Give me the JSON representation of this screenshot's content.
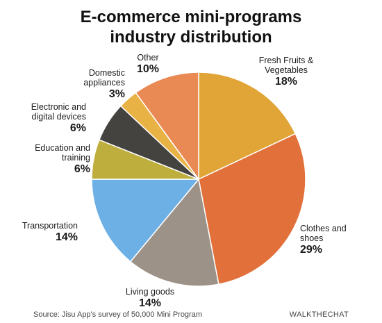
{
  "title_lines": [
    "E-commerce mini-programs",
    "industry distribution"
  ],
  "source": "Source: Jisu App's survey of 50,000 Mini Program",
  "brand": "WALKTHECHAT",
  "chart_data": {
    "type": "pie",
    "title": "E-commerce mini-programs industry distribution",
    "slices": [
      {
        "label_lines": [
          "Fresh Fruits &",
          "Vegetables"
        ],
        "label": "Fresh Fruits & Vegetables",
        "value": 18,
        "pct_text": "18%",
        "color": "#E0A437"
      },
      {
        "label_lines": [
          "Clothes and",
          "shoes"
        ],
        "label": "Clothes and shoes",
        "value": 29,
        "pct_text": "29%",
        "color": "#E2703A"
      },
      {
        "label_lines": [
          "Living goods"
        ],
        "label": "Living goods",
        "value": 14,
        "pct_text": "14%",
        "color": "#9D9287"
      },
      {
        "label_lines": [
          "Transportation"
        ],
        "label": "Transportation",
        "value": 14,
        "pct_text": "14%",
        "color": "#6DB0E6"
      },
      {
        "label_lines": [
          "Education and",
          "training"
        ],
        "label": "Education and training",
        "value": 6,
        "pct_text": "6%",
        "color": "#BDAE3E"
      },
      {
        "label_lines": [
          "Electronic and",
          "digital devices"
        ],
        "label": "Electronic and digital devices",
        "value": 6,
        "pct_text": "6%",
        "color": "#444340"
      },
      {
        "label_lines": [
          "Domestic",
          "appliances"
        ],
        "label": "Domestic appliances",
        "value": 3,
        "pct_text": "3%",
        "color": "#E8B245"
      },
      {
        "label_lines": [
          "Other"
        ],
        "label": "Other",
        "value": 10,
        "pct_text": "10%",
        "color": "#E98953"
      }
    ],
    "start": "12 o'clock",
    "direction": "clockwise",
    "legend": "none"
  }
}
